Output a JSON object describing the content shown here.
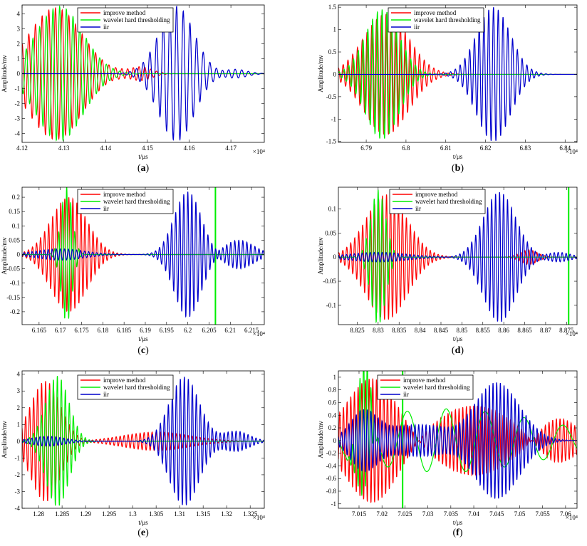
{
  "chart_data": [
    {
      "type": "line",
      "panel_label": "(a)",
      "xlabel": "t/μs",
      "ylabel": "Amplitude/mv",
      "x_multiplier": "×10⁴",
      "xlim": [
        4.12,
        4.178
      ],
      "ylim": [
        -4.6,
        4.6
      ],
      "xticks": [
        4.12,
        4.13,
        4.14,
        4.15,
        4.16,
        4.17
      ],
      "xtick_labels": [
        "4.12",
        "4.13",
        "4.14",
        "4.15",
        "4.16",
        "4.17"
      ],
      "yticks": [
        -4,
        -3,
        -2,
        -1,
        0,
        1,
        2,
        3,
        4
      ],
      "ytick_labels": [
        "-4",
        "-3",
        "-2",
        "-1",
        "0",
        "1",
        "2",
        "3",
        "4"
      ],
      "legend": [
        "improve method",
        "wavelet hard thresholding",
        "iir"
      ],
      "series": [
        {
          "name": "improve method",
          "color": "#ff0000",
          "components": [
            {
              "center": 4.128,
              "amplitude": 4.4,
              "width": 0.009,
              "freq": 0.0016
            },
            {
              "center": 4.148,
              "amplitude": 0.5,
              "width": 0.004,
              "freq": 0.0014
            }
          ]
        },
        {
          "name": "wavelet hard thresholding",
          "color": "#00ee00",
          "components": [
            {
              "center": 4.129,
              "amplitude": 4.5,
              "width": 0.008,
              "freq": 0.0016
            }
          ]
        },
        {
          "name": "iir",
          "color": "#0000cc",
          "components": [
            {
              "center": 4.157,
              "amplitude": 4.5,
              "width": 0.006,
              "freq": 0.0016
            },
            {
              "center": 4.171,
              "amplitude": 0.3,
              "width": 0.004,
              "freq": 0.0016
            }
          ]
        }
      ]
    },
    {
      "type": "line",
      "panel_label": "(b)",
      "xlabel": "t/μs",
      "ylabel": "Amplitude/mv",
      "x_multiplier": "×10⁴",
      "xlim": [
        6.783,
        6.843
      ],
      "ylim": [
        -1.52,
        1.55
      ],
      "xticks": [
        6.79,
        6.8,
        6.81,
        6.82,
        6.83,
        6.84
      ],
      "xtick_labels": [
        "6.79",
        "6.8",
        "6.81",
        "6.82",
        "6.83",
        "6.84"
      ],
      "yticks": [
        -1.5,
        -1,
        -0.5,
        0,
        0.5,
        1,
        1.5
      ],
      "ytick_labels": [
        "-1.5",
        "-1",
        "-0.5",
        "0",
        "0.5",
        "1",
        "1.5"
      ],
      "legend": [
        "improve method",
        "wavelet hard thresholding",
        "iir"
      ],
      "series": [
        {
          "name": "improve method",
          "color": "#ff0000",
          "components": [
            {
              "center": 6.795,
              "amplitude": 1.35,
              "width": 0.008,
              "freq": 0.0012
            }
          ]
        },
        {
          "name": "wavelet hard thresholding",
          "color": "#00ee00",
          "components": [
            {
              "center": 6.794,
              "amplitude": 1.45,
              "width": 0.006,
              "freq": 0.0012
            }
          ]
        },
        {
          "name": "iir",
          "color": "#0000cc",
          "components": [
            {
              "center": 6.822,
              "amplitude": 1.5,
              "width": 0.006,
              "freq": 0.0012
            }
          ]
        }
      ]
    },
    {
      "type": "line",
      "panel_label": "(c)",
      "xlabel": "t/μs",
      "ylabel": "Amplitude/mv",
      "x_multiplier": "×10⁴",
      "xlim": [
        6.161,
        6.218
      ],
      "ylim": [
        -0.245,
        0.235
      ],
      "xticks": [
        6.165,
        6.17,
        6.175,
        6.18,
        6.185,
        6.19,
        6.195,
        6.2,
        6.205,
        6.21,
        6.215
      ],
      "xtick_labels": [
        "6.165",
        "6.17",
        "6.175",
        "6.18",
        "6.185",
        "6.19",
        "6.195",
        "6.2",
        "6.205",
        "6.21",
        "6.215"
      ],
      "yticks": [
        -0.2,
        -0.15,
        -0.1,
        -0.05,
        0,
        0.05,
        0.1,
        0.15,
        0.2
      ],
      "ytick_labels": [
        "-0.2",
        "-0.15",
        "-0.1",
        "-0.05",
        "0",
        "0.05",
        "0.1",
        "0.15",
        "0.2"
      ],
      "legend": [
        "improve method",
        "wavelet hard thresholding",
        "iir"
      ],
      "series": [
        {
          "name": "improve method",
          "color": "#ff0000",
          "components": [
            {
              "center": 6.172,
              "amplitude": 0.2,
              "width": 0.006,
              "freq": 0.00095
            }
          ]
        },
        {
          "name": "wavelet hard thresholding",
          "color": "#00ee00",
          "components": [
            {
              "center": 6.1715,
              "amplitude": 0.24,
              "width": 0.0018,
              "freq": 0.00095
            }
          ],
          "spikes": [
            6.2065
          ]
        },
        {
          "name": "iir",
          "color": "#0000cc",
          "components": [
            {
              "center": 6.2,
              "amplitude": 0.22,
              "width": 0.0045,
              "freq": 0.00095
            },
            {
              "center": 6.17,
              "amplitude": 0.02,
              "width": 0.008,
              "freq": 0.00095
            },
            {
              "center": 6.212,
              "amplitude": 0.05,
              "width": 0.005,
              "freq": 0.00095
            }
          ]
        }
      ]
    },
    {
      "type": "line",
      "panel_label": "(d)",
      "xlabel": "t/μs",
      "ylabel": "Amplitude/mv",
      "x_multiplier": "×10⁴",
      "xlim": [
        8.8205,
        8.8775
      ],
      "ylim": [
        -0.14,
        0.145
      ],
      "xticks": [
        8.825,
        8.83,
        8.835,
        8.84,
        8.845,
        8.85,
        8.855,
        8.86,
        8.865,
        8.87,
        8.875
      ],
      "xtick_labels": [
        "8.825",
        "8.83",
        "8.835",
        "8.84",
        "8.845",
        "8.85",
        "8.855",
        "8.86",
        "8.865",
        "8.87",
        "8.875"
      ],
      "yticks": [
        -0.1,
        -0.05,
        0,
        0.05,
        0.1
      ],
      "ytick_labels": [
        "-0.1",
        "-0.05",
        "0",
        "0.05",
        "0.1"
      ],
      "legend": [
        "improve method",
        "wavelet hard thresholding",
        "iir"
      ],
      "series": [
        {
          "name": "improve method",
          "color": "#ff0000",
          "components": [
            {
              "center": 8.832,
              "amplitude": 0.13,
              "width": 0.007,
              "freq": 0.00095
            },
            {
              "center": 8.866,
              "amplitude": 0.015,
              "width": 0.003,
              "freq": 0.00095
            }
          ]
        },
        {
          "name": "wavelet hard thresholding",
          "color": "#00ee00",
          "components": [
            {
              "center": 8.83,
              "amplitude": 0.14,
              "width": 0.0025,
              "freq": 0.00095
            }
          ],
          "spikes": [
            8.8755
          ]
        },
        {
          "name": "iir",
          "color": "#0000cc",
          "components": [
            {
              "center": 8.859,
              "amplitude": 0.135,
              "width": 0.0055,
              "freq": 0.00095
            },
            {
              "center": 8.83,
              "amplitude": 0.01,
              "width": 0.01,
              "freq": 0.00095
            },
            {
              "center": 8.873,
              "amplitude": 0.01,
              "width": 0.004,
              "freq": 0.00095
            }
          ]
        }
      ]
    },
    {
      "type": "line",
      "panel_label": "(e)",
      "xlabel": "t/μs",
      "ylabel": "Amplitude/mv",
      "x_multiplier": "×10⁴",
      "xlim": [
        1.2765,
        1.328
      ],
      "ylim": [
        -4.0,
        4.2
      ],
      "xticks": [
        1.28,
        1.285,
        1.29,
        1.295,
        1.3,
        1.305,
        1.31,
        1.315,
        1.32,
        1.325
      ],
      "xtick_labels": [
        "1.28",
        "1.285",
        "1.29",
        "1.295",
        "1.3",
        "1.305",
        "1.31",
        "1.315",
        "1.32",
        "1.325"
      ],
      "yticks": [
        -4,
        -3,
        -2,
        -1,
        0,
        1,
        2,
        3,
        4
      ],
      "ytick_labels": [
        "-4",
        "-3",
        "-2",
        "-1",
        "0",
        "1",
        "2",
        "3",
        "4"
      ],
      "legend": [
        "improve method",
        "wavelet hard thresholding",
        "iir"
      ],
      "series": [
        {
          "name": "improve method",
          "color": "#ff0000",
          "components": [
            {
              "center": 1.2815,
              "amplitude": 3.6,
              "width": 0.0045,
              "freq": 0.00085
            },
            {
              "center": 1.305,
              "amplitude": 0.55,
              "width": 0.01,
              "freq": 0.00085
            }
          ]
        },
        {
          "name": "wavelet hard thresholding",
          "color": "#00ee00",
          "components": [
            {
              "center": 1.284,
              "amplitude": 3.9,
              "width": 0.0035,
              "freq": 0.00085
            }
          ]
        },
        {
          "name": "iir",
          "color": "#0000cc",
          "components": [
            {
              "center": 1.311,
              "amplitude": 3.85,
              "width": 0.0045,
              "freq": 0.00085
            },
            {
              "center": 1.282,
              "amplitude": 0.3,
              "width": 0.005,
              "freq": 0.00085
            },
            {
              "center": 1.322,
              "amplitude": 0.6,
              "width": 0.004,
              "freq": 0.00085
            }
          ]
        }
      ]
    },
    {
      "type": "line",
      "panel_label": "(f)",
      "xlabel": "t/μs",
      "ylabel": "Amplitude/mv",
      "x_multiplier": "×10⁴",
      "xlim": [
        7.0105,
        7.0625
      ],
      "ylim": [
        -1.07,
        1.1
      ],
      "xticks": [
        7.015,
        7.02,
        7.025,
        7.03,
        7.035,
        7.04,
        7.045,
        7.05,
        7.055,
        7.06
      ],
      "xtick_labels": [
        "7.015",
        "7.02",
        "7.025",
        "7.03",
        "7.035",
        "7.04",
        "7.045",
        "7.05",
        "7.055",
        "7.06"
      ],
      "yticks": [
        -1,
        -0.8,
        -0.6,
        -0.4,
        -0.2,
        0,
        0.2,
        0.4,
        0.6,
        0.8,
        1
      ],
      "ytick_labels": [
        "-1",
        "-0.8",
        "-0.6",
        "-0.4",
        "-0.2",
        "0",
        "0.2",
        "0.4",
        "0.6",
        "0.8",
        "1"
      ],
      "legend": [
        "improve method",
        "wavelet hard thresholding",
        "iir"
      ],
      "series": [
        {
          "name": "improve method",
          "color": "#ff0000",
          "components": [
            {
              "center": 7.018,
              "amplitude": 1.0,
              "width": 0.008,
              "freq": 0.0008
            },
            {
              "center": 7.04,
              "amplitude": 0.55,
              "width": 0.012,
              "freq": 0.0008
            },
            {
              "center": 7.058,
              "amplitude": 0.4,
              "width": 0.006,
              "freq": 0.0008
            }
          ]
        },
        {
          "name": "wavelet hard thresholding",
          "color": "#00ee00",
          "components": [
            {
              "center": 7.016,
              "amplitude": 1.1,
              "width": 0.0018,
              "freq": 0.0008
            },
            {
              "center": 7.034,
              "amplitude": 0.5,
              "width": 0.03,
              "freq": 0.0085
            }
          ],
          "spikes": [
            7.0245
          ]
        },
        {
          "name": "iir",
          "color": "#0000cc",
          "components": [
            {
              "center": 7.045,
              "amplitude": 0.92,
              "width": 0.007,
              "freq": 0.0008
            },
            {
              "center": 7.016,
              "amplitude": 0.4,
              "width": 0.004,
              "freq": 0.0008
            },
            {
              "center": 7.028,
              "amplitude": 0.25,
              "width": 0.012,
              "freq": 0.0008
            }
          ]
        }
      ]
    }
  ]
}
